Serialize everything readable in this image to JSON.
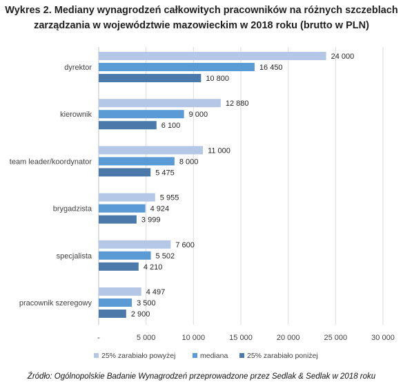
{
  "title_lines": [
    "Wykres 2. Mediany wynagrodzeń całkowitych pracowników na różnych szczeblach",
    "zarządzania w województwie mazowieckim w 2018 roku (brutto w PLN)"
  ],
  "source": "Źródło: Ogólnopolskie Badanie Wynagrodzeń przeprowadzone przez Sedlak & Sedlak w 2018 roku",
  "chart_data": {
    "type": "bar",
    "orientation": "horizontal",
    "categories": [
      "dyrektor",
      "kierownik",
      "team leader/koordynator",
      "brygadzista",
      "specjalista",
      "pracownik szeregowy"
    ],
    "series": [
      {
        "name": "25% zarabiało powyżej",
        "color": "#b4c7e7",
        "values": [
          24000,
          12880,
          11000,
          5955,
          7600,
          4497
        ],
        "labels": [
          "24 000",
          "12 880",
          "11 000",
          "5 955",
          "7 600",
          "4 497"
        ]
      },
      {
        "name": "mediana",
        "color": "#5b9bd5",
        "values": [
          16450,
          9000,
          8000,
          4924,
          5502,
          3500
        ],
        "labels": [
          "16 450",
          "9 000",
          "8 000",
          "4 924",
          "5 502",
          "3 500"
        ]
      },
      {
        "name": "25% zarabiało poniżej",
        "color": "#4a79aa",
        "values": [
          10800,
          6100,
          5475,
          3999,
          4210,
          2900
        ],
        "labels": [
          "10 800",
          "6 100",
          "5 475",
          "3 999",
          "4 210",
          "2 900"
        ]
      }
    ],
    "x_ticks": [
      0,
      5000,
      10000,
      15000,
      20000,
      25000,
      30000
    ],
    "x_tick_labels": [
      "-",
      "5 000",
      "10 000",
      "15 000",
      "20 000",
      "25 000",
      "30 000"
    ],
    "xlim": [
      0,
      30000
    ],
    "grid": "vertical",
    "legend_position": "bottom"
  }
}
